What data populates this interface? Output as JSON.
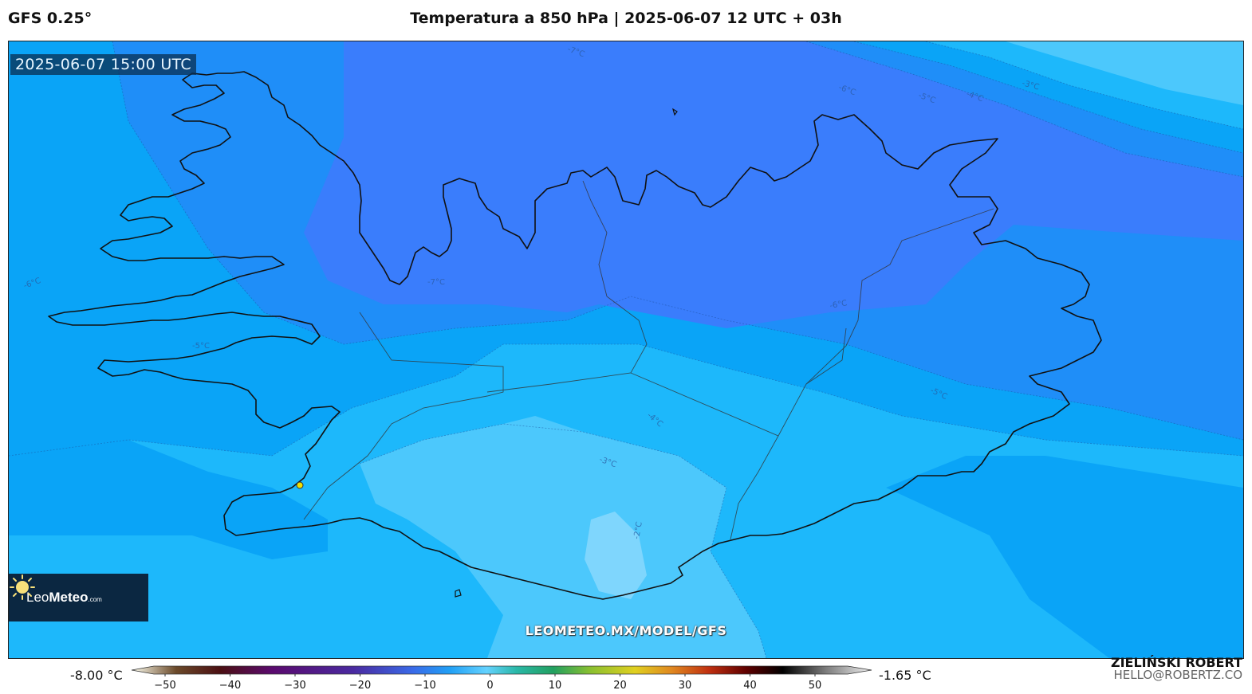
{
  "header": {
    "model": "GFS 0.25°",
    "title": "Temperatura a 850 hPa | 2025-06-07 12 UTC + 03h"
  },
  "map": {
    "valid_time": "2025-06-07 15:00 UTC",
    "watermark": "LEOMETEO.MX/MODEL/GFS",
    "marker_color": "#f0e000",
    "contour_labels": [
      "-7°C",
      "-6°C",
      "-5°C",
      "-4°C",
      "-3°C",
      "-6°C",
      "-7°C",
      "-5°C",
      "-6°C",
      "-5°C",
      "-4°C",
      "-3°C",
      "-2°C"
    ],
    "fill_colors": {
      "-7": "#3a7dfc",
      "-6": "#1f8ef8",
      "-5": "#0aa4f7",
      "-4": "#1db8fb",
      "-3": "#4cc8fc",
      "-2": "#7fd6fd"
    },
    "coastline_color": "#111111"
  },
  "logo": {
    "name_light": "Leo",
    "name_bold": "Meteo",
    "suffix": ".com",
    "icon": "sun-icon"
  },
  "colorbar": {
    "min_label": "-8.00 °C",
    "max_label": "-1.65 °C",
    "ticks": [
      "−50",
      "−40",
      "−30",
      "−20",
      "−10",
      "0",
      "10",
      "20",
      "30",
      "40",
      "50"
    ],
    "range": [
      -55,
      60
    ],
    "colors": [
      "#fffff0",
      "#6b4a2a",
      "#4b0f12",
      "#5a0a6e",
      "#4a2aa0",
      "#3a6ae8",
      "#21a0f5",
      "#64d2ff",
      "#2ab8a8",
      "#22a060",
      "#8ac030",
      "#e0d020",
      "#e08820",
      "#c03010",
      "#600000",
      "#000000",
      "#808080",
      "#f0f0f0"
    ]
  },
  "credit": {
    "name": "ZIELIŃSKI ROBERT",
    "email": "HELLO@ROBERTZ.CO"
  }
}
